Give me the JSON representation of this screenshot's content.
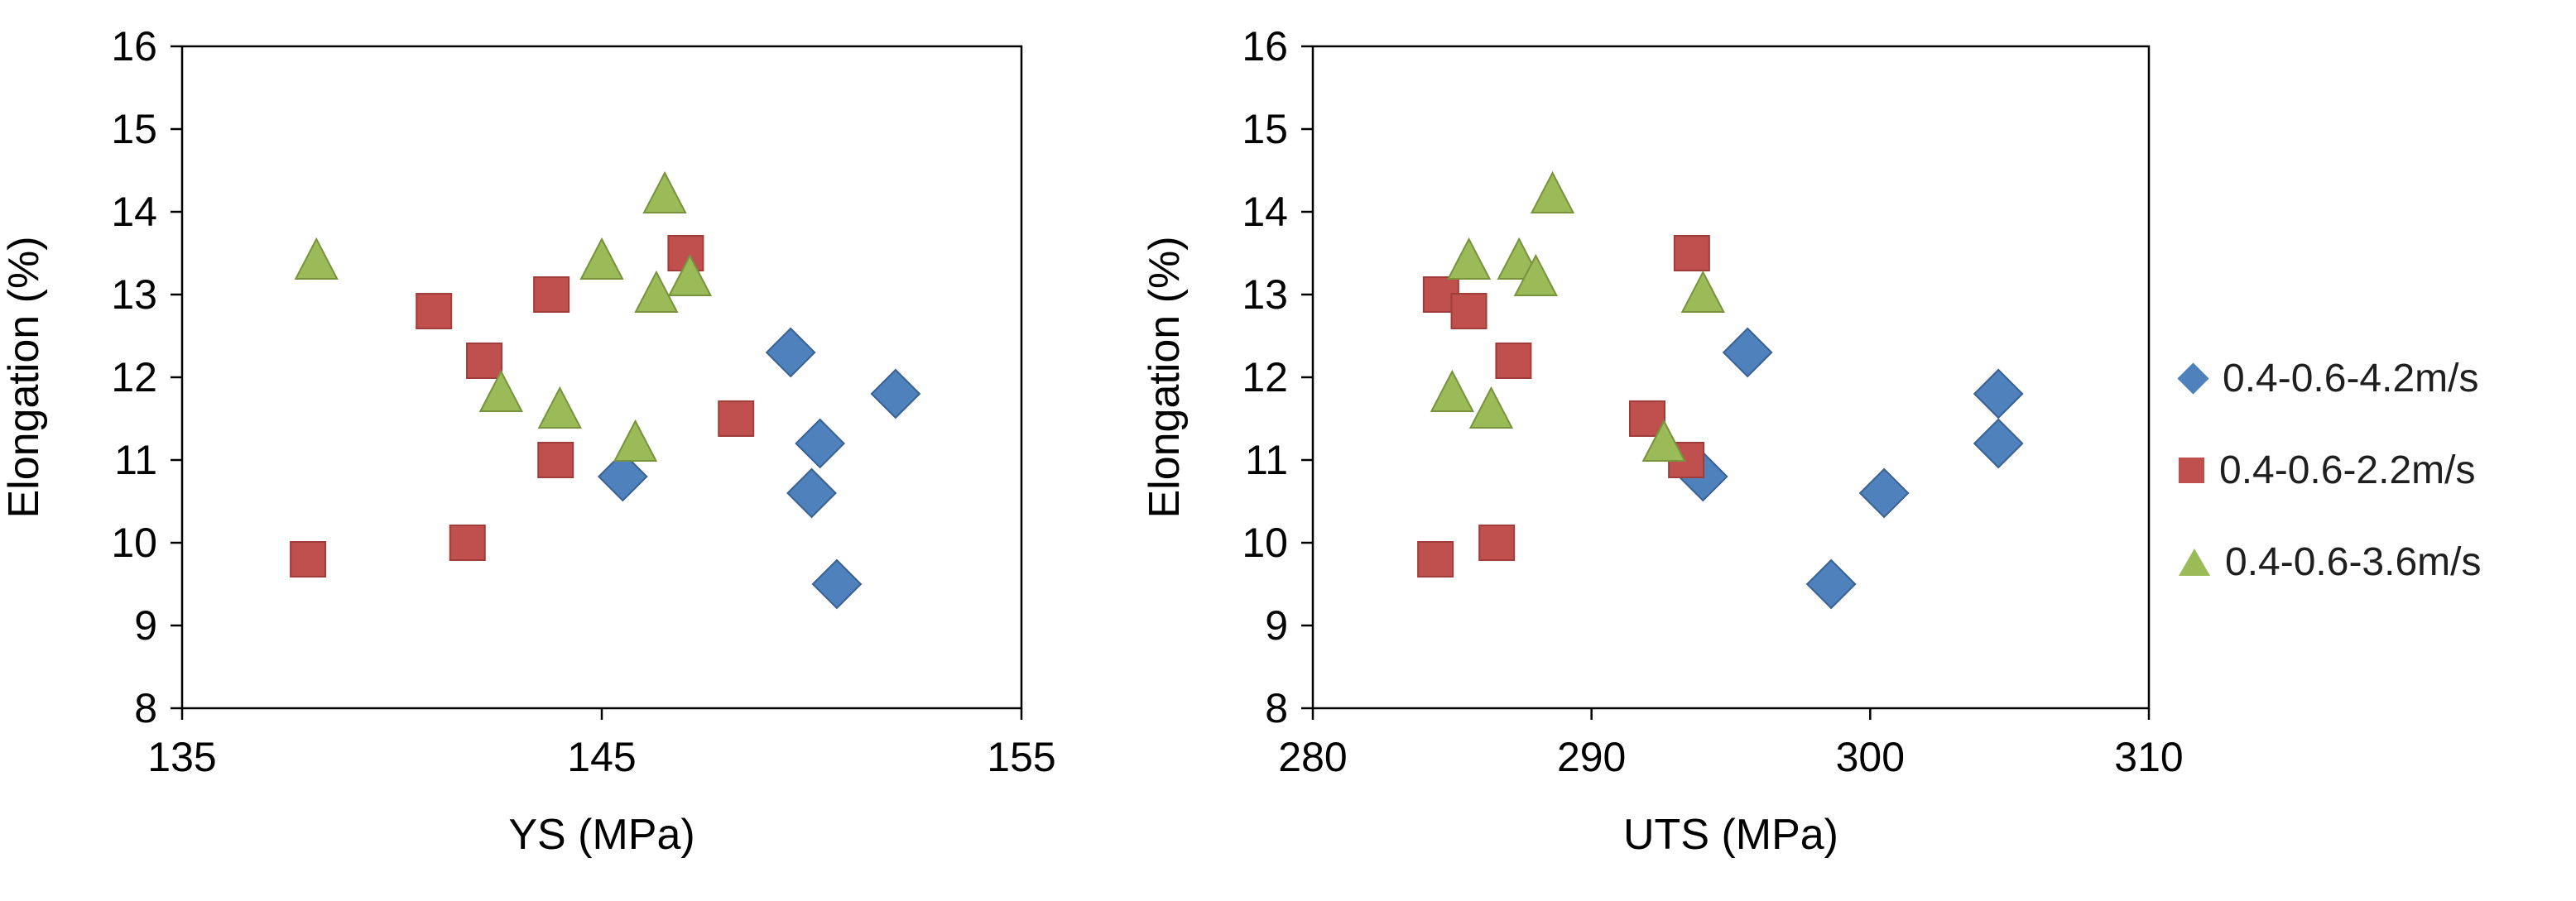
{
  "figure": {
    "background": "#ffffff",
    "axis_color": "#000000",
    "text_color": "#1f1f1f"
  },
  "legend": {
    "position": "right",
    "items": [
      {
        "label": "0.4-0.6-4.2m/s",
        "marker": "diamond",
        "color": "#4F81BD"
      },
      {
        "label": "0.4-0.6-2.2m/s",
        "marker": "square",
        "color": "#C0504D"
      },
      {
        "label": "0.4-0.6-3.6m/s",
        "marker": "triangle",
        "color": "#9BBB59"
      }
    ]
  },
  "chart_data": [
    {
      "type": "scatter",
      "title": "",
      "xlabel": "YS (MPa)",
      "ylabel": "Elongation (%)",
      "xlim": [
        135,
        155
      ],
      "ylim": [
        8,
        16
      ],
      "xticks": [
        135,
        145,
        155
      ],
      "yticks": [
        8,
        9,
        10,
        11,
        12,
        13,
        14,
        15,
        16
      ],
      "grid": false,
      "series": [
        {
          "name": "0.4-0.6-4.2m/s",
          "marker": "diamond",
          "color": "#4F81BD",
          "edge": "#3A6191",
          "points": [
            [
              145.5,
              10.8
            ],
            [
              149.5,
              12.3
            ],
            [
              150.2,
              11.2
            ],
            [
              150.0,
              10.6
            ],
            [
              150.6,
              9.5
            ],
            [
              152.0,
              11.8
            ]
          ]
        },
        {
          "name": "0.4-0.6-2.2m/s",
          "marker": "square",
          "color": "#C0504D",
          "edge": "#9E3D3A",
          "points": [
            [
              138.0,
              9.8
            ],
            [
              141.0,
              12.8
            ],
            [
              141.8,
              10.0
            ],
            [
              142.2,
              12.2
            ],
            [
              143.8,
              13.0
            ],
            [
              143.9,
              11.0
            ],
            [
              147.0,
              13.5
            ],
            [
              148.2,
              11.5
            ]
          ]
        },
        {
          "name": "0.4-0.6-3.6m/s",
          "marker": "triangle",
          "color": "#9BBB59",
          "edge": "#77933C",
          "points": [
            [
              138.2,
              13.4
            ],
            [
              142.6,
              11.8
            ],
            [
              144.0,
              11.6
            ],
            [
              145.0,
              13.4
            ],
            [
              145.8,
              11.2
            ],
            [
              146.3,
              13.0
            ],
            [
              146.5,
              14.2
            ],
            [
              147.1,
              13.2
            ]
          ]
        }
      ]
    },
    {
      "type": "scatter",
      "title": "",
      "xlabel": "UTS (MPa)",
      "ylabel": "Elongation (%)",
      "xlim": [
        280,
        310
      ],
      "ylim": [
        8,
        16
      ],
      "xticks": [
        280,
        290,
        300,
        310
      ],
      "yticks": [
        8,
        9,
        10,
        11,
        12,
        13,
        14,
        15,
        16
      ],
      "grid": false,
      "series": [
        {
          "name": "0.4-0.6-4.2m/s",
          "marker": "diamond",
          "color": "#4F81BD",
          "edge": "#3A6191",
          "points": [
            [
              294.0,
              10.8
            ],
            [
              295.6,
              12.3
            ],
            [
              304.6,
              11.2
            ],
            [
              300.5,
              10.6
            ],
            [
              298.6,
              9.5
            ],
            [
              304.6,
              11.8
            ]
          ]
        },
        {
          "name": "0.4-0.6-2.2m/s",
          "marker": "square",
          "color": "#C0504D",
          "edge": "#9E3D3A",
          "points": [
            [
              284.6,
              13.0
            ],
            [
              285.6,
              12.8
            ],
            [
              284.4,
              9.8
            ],
            [
              286.6,
              10.0
            ],
            [
              287.2,
              12.2
            ],
            [
              292.0,
              11.5
            ],
            [
              293.4,
              11.0
            ],
            [
              293.6,
              13.5
            ]
          ]
        },
        {
          "name": "0.4-0.6-3.6m/s",
          "marker": "triangle",
          "color": "#9BBB59",
          "edge": "#77933C",
          "points": [
            [
              285.6,
              13.4
            ],
            [
              285.0,
              11.8
            ],
            [
              286.4,
              11.6
            ],
            [
              287.4,
              13.4
            ],
            [
              288.0,
              13.2
            ],
            [
              288.6,
              14.2
            ],
            [
              292.6,
              11.2
            ],
            [
              294.0,
              13.0
            ]
          ]
        }
      ]
    }
  ]
}
